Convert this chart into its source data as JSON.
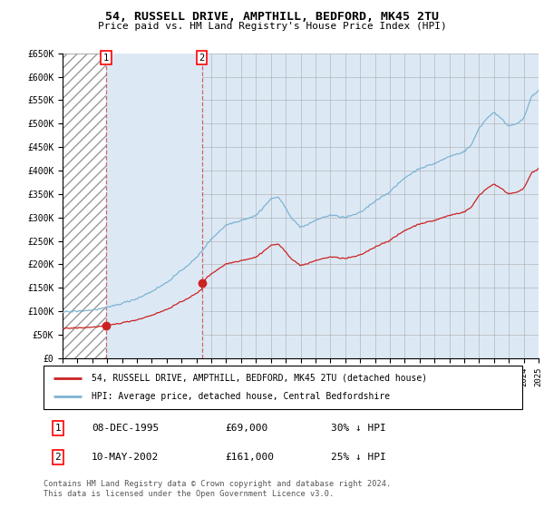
{
  "title1": "54, RUSSELL DRIVE, AMPTHILL, BEDFORD, MK45 2TU",
  "title2": "Price paid vs. HM Land Registry's House Price Index (HPI)",
  "background_color": "#ffffff",
  "plot_bg_color": "#dce9f5",
  "grid_color": "#aaaaaa",
  "red_line_label": "54, RUSSELL DRIVE, AMPTHILL, BEDFORD, MK45 2TU (detached house)",
  "blue_line_label": "HPI: Average price, detached house, Central Bedfordshire",
  "purchase1_date": "08-DEC-1995",
  "purchase1_price": 69000,
  "purchase1_note": "30% ↓ HPI",
  "purchase2_date": "10-MAY-2002",
  "purchase2_price": 161000,
  "purchase2_note": "25% ↓ HPI",
  "footer": "Contains HM Land Registry data © Crown copyright and database right 2024.\nThis data is licensed under the Open Government Licence v3.0.",
  "xmin": 1993,
  "xmax": 2025,
  "ymin": 0,
  "ymax": 650000,
  "yticks": [
    0,
    50000,
    100000,
    150000,
    200000,
    250000,
    300000,
    350000,
    400000,
    450000,
    500000,
    550000,
    600000,
    650000
  ],
  "ytick_labels": [
    "£0",
    "£50K",
    "£100K",
    "£150K",
    "£200K",
    "£250K",
    "£300K",
    "£350K",
    "£400K",
    "£450K",
    "£500K",
    "£550K",
    "£600K",
    "£650K"
  ],
  "purchase1_x": 1995.92,
  "purchase2_x": 2002.36,
  "hatch_xmax": 1995.92,
  "light_blue_xmax": 2002.36
}
